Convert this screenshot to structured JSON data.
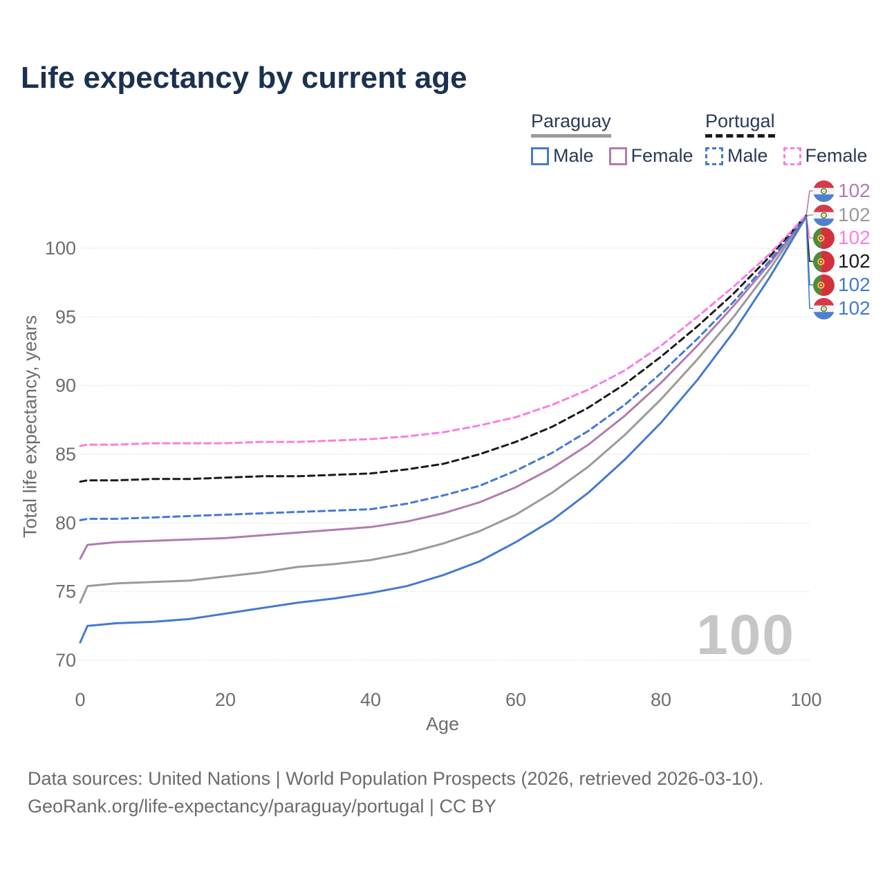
{
  "title": "Life expectancy by current age",
  "legend": {
    "groups": [
      {
        "country": "Paraguay",
        "line_style": "solid",
        "underline_color": "#9a9a9a",
        "items": [
          {
            "label": "Male",
            "color": "#4479d4"
          },
          {
            "label": "Female",
            "color": "#b27bae"
          }
        ]
      },
      {
        "country": "Portugal",
        "line_style": "dashed",
        "underline_color": "#1a1a1a",
        "items": [
          {
            "label": "Male",
            "color": "#4479d4"
          },
          {
            "label": "Female",
            "color": "#f97ee3"
          }
        ]
      }
    ]
  },
  "watermark": "100",
  "footer": {
    "line1": "Data sources: United Nations | World Population Prospects (2026, retrieved 2026-03-10).",
    "line2": "GeoRank.org/life-expectancy/paraguay/portugal | CC BY"
  },
  "chart_data": {
    "type": "line",
    "title": "Life expectancy by current age",
    "xlabel": "Age",
    "ylabel": "Total life expectancy, years",
    "xlim": [
      0,
      100
    ],
    "ylim": [
      70,
      103
    ],
    "x_ticks": [
      0,
      20,
      40,
      60,
      80,
      100
    ],
    "y_ticks": [
      70,
      75,
      80,
      85,
      90,
      95,
      100
    ],
    "grid": "horizontal",
    "legend_position": "top-right",
    "x": [
      0,
      1,
      5,
      10,
      15,
      20,
      25,
      30,
      35,
      40,
      45,
      50,
      55,
      60,
      65,
      70,
      75,
      80,
      85,
      90,
      95,
      100
    ],
    "series": [
      {
        "name": "Paraguay Both sexes",
        "country": "Paraguay",
        "group": "Both sexes",
        "color": "#9a9a9a",
        "dash": "solid",
        "values": [
          74.2,
          75.4,
          75.6,
          75.7,
          75.8,
          76.1,
          76.4,
          76.8,
          77.0,
          77.3,
          77.8,
          78.5,
          79.4,
          80.6,
          82.2,
          84.1,
          86.4,
          89.0,
          91.9,
          95.0,
          98.5,
          102.3
        ]
      },
      {
        "name": "Paraguay Female",
        "country": "Paraguay",
        "group": "Female",
        "color": "#b27bae",
        "dash": "solid",
        "values": [
          77.4,
          78.4,
          78.6,
          78.7,
          78.8,
          78.9,
          79.1,
          79.3,
          79.5,
          79.7,
          80.1,
          80.7,
          81.5,
          82.6,
          84.0,
          85.7,
          87.8,
          90.2,
          92.9,
          95.8,
          98.9,
          102.3
        ]
      },
      {
        "name": "Portugal Male",
        "country": "Portugal",
        "group": "Male",
        "color": "#4479d4",
        "dash": "dashed",
        "values": [
          80.2,
          80.3,
          80.3,
          80.4,
          80.5,
          80.6,
          80.7,
          80.8,
          80.9,
          81.0,
          81.4,
          82.0,
          82.7,
          83.8,
          85.1,
          86.7,
          88.6,
          90.9,
          93.4,
          96.1,
          99.1,
          102.3
        ]
      },
      {
        "name": "Portugal Both sexes",
        "country": "Portugal",
        "group": "Both sexes",
        "color": "#1a1a1a",
        "dash": "dashed",
        "values": [
          83.0,
          83.1,
          83.1,
          83.2,
          83.2,
          83.3,
          83.4,
          83.4,
          83.5,
          83.6,
          83.9,
          84.3,
          85.0,
          85.9,
          87.0,
          88.4,
          90.1,
          92.1,
          94.3,
          96.7,
          99.4,
          102.4
        ]
      },
      {
        "name": "Portugal Female",
        "country": "Portugal",
        "group": "Female",
        "color": "#f97ee3",
        "dash": "dashed",
        "values": [
          85.6,
          85.7,
          85.7,
          85.8,
          85.8,
          85.8,
          85.9,
          85.9,
          86.0,
          86.1,
          86.3,
          86.6,
          87.1,
          87.7,
          88.6,
          89.7,
          91.1,
          92.9,
          95.0,
          97.2,
          99.6,
          102.4
        ]
      },
      {
        "name": "Paraguay Male",
        "country": "Paraguay",
        "group": "Male",
        "color": "#4479d4",
        "dash": "solid",
        "values": [
          71.3,
          72.5,
          72.7,
          72.8,
          73.0,
          73.4,
          73.8,
          74.2,
          74.5,
          74.9,
          75.4,
          76.2,
          77.2,
          78.6,
          80.2,
          82.2,
          84.6,
          87.3,
          90.4,
          93.9,
          97.9,
          102.3
        ]
      }
    ],
    "endpoint_labels": [
      {
        "value": "102",
        "flag": "paraguay",
        "series": "Paraguay Female",
        "color": "#b27bae"
      },
      {
        "value": "102",
        "flag": "paraguay",
        "series": "Paraguay Both sexes",
        "color": "#9a9a9a"
      },
      {
        "value": "102",
        "flag": "portugal",
        "series": "Portugal Female",
        "color": "#f97ee3"
      },
      {
        "value": "102",
        "flag": "portugal",
        "series": "Portugal Both sexes",
        "color": "#1a1a1a"
      },
      {
        "value": "102",
        "flag": "portugal",
        "series": "Portugal Male",
        "color": "#4479d4"
      },
      {
        "value": "102",
        "flag": "paraguay",
        "series": "Paraguay Male",
        "color": "#4479d4"
      }
    ]
  }
}
